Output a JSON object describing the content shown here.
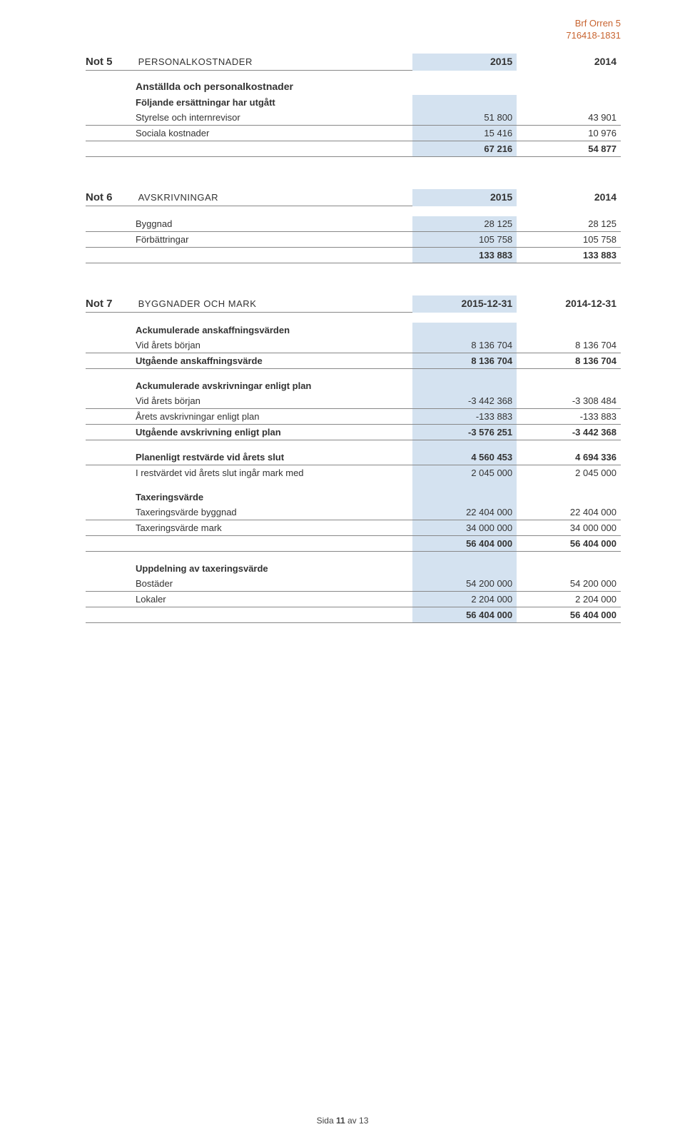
{
  "header": {
    "org": "Brf Orren 5",
    "orgnr": "716418-1831"
  },
  "note5": {
    "id": "Not 5",
    "title": "PERSONALKOSTNADER",
    "col1": "2015",
    "col2": "2014",
    "subheading": "Anställda och personalkostnader",
    "rows": [
      {
        "label": "Följande ersättningar har utgått",
        "bold": true
      },
      {
        "label": "Styrelse och internrevisor",
        "v1": "51 800",
        "v2": "43 901",
        "rule": true
      },
      {
        "label": "Sociala kostnader",
        "v1": "15 416",
        "v2": "10 976",
        "rule": true
      },
      {
        "label": "",
        "v1": "67 216",
        "v2": "54 877",
        "total": true,
        "rule": true
      }
    ]
  },
  "note6": {
    "id": "Not 6",
    "title": "AVSKRIVNINGAR",
    "col1": "2015",
    "col2": "2014",
    "rows": [
      {
        "label": "Byggnad",
        "v1": "28 125",
        "v2": "28 125",
        "rule": true
      },
      {
        "label": "Förbättringar",
        "v1": "105 758",
        "v2": "105 758",
        "rule": true
      },
      {
        "label": "",
        "v1": "133 883",
        "v2": "133 883",
        "total": true,
        "rule": true
      }
    ]
  },
  "note7": {
    "id": "Not 7",
    "title": "BYGGNADER OCH MARK",
    "col1": "2015-12-31",
    "col2": "2014-12-31",
    "rows": [
      {
        "label": "Ackumulerade anskaffningsvärden",
        "bold": true
      },
      {
        "label": "Vid årets början",
        "v1": "8 136 704",
        "v2": "8 136 704",
        "rule": true
      },
      {
        "label": "Utgående anskaffningsvärde",
        "v1": "8 136 704",
        "v2": "8 136 704",
        "total": true,
        "rule": true
      },
      {
        "label": "Ackumulerade avskrivningar enligt plan",
        "bold": true,
        "section": true
      },
      {
        "label": "Vid årets början",
        "v1": "-3 442 368",
        "v2": "-3 308 484",
        "rule": true
      },
      {
        "label": "Årets avskrivningar enligt plan",
        "v1": "-133 883",
        "v2": "-133 883",
        "rule": true
      },
      {
        "label": "Utgående avskrivning enligt plan",
        "v1": "-3 576 251",
        "v2": "-3 442 368",
        "total": true,
        "rule": true
      },
      {
        "label": "Planenligt restvärde vid årets slut",
        "v1": "4 560 453",
        "v2": "4 694 336",
        "total": true,
        "rule": true,
        "section": true
      },
      {
        "label": "I restvärdet vid årets slut ingår mark med",
        "v1": "2 045 000",
        "v2": "2 045 000"
      },
      {
        "label": "Taxeringsvärde",
        "bold": true,
        "section": true
      },
      {
        "label": "Taxeringsvärde byggnad",
        "v1": "22 404 000",
        "v2": "22 404 000",
        "rule": true
      },
      {
        "label": "Taxeringsvärde mark",
        "v1": "34 000 000",
        "v2": "34 000 000",
        "rule": true
      },
      {
        "label": "",
        "v1": "56 404 000",
        "v2": "56 404 000",
        "total": true,
        "rule": true
      },
      {
        "label": "Uppdelning av taxeringsvärde",
        "bold": true,
        "section": true
      },
      {
        "label": "Bostäder",
        "v1": "54 200 000",
        "v2": "54 200 000",
        "rule": true
      },
      {
        "label": "Lokaler",
        "v1": "2 204 000",
        "v2": "2 204 000",
        "rule": true
      },
      {
        "label": "",
        "v1": "56 404 000",
        "v2": "56 404 000",
        "total": true,
        "rule": true
      }
    ]
  },
  "footer": {
    "prefix": "Sida ",
    "page": "11",
    "suffix": " av 13"
  }
}
